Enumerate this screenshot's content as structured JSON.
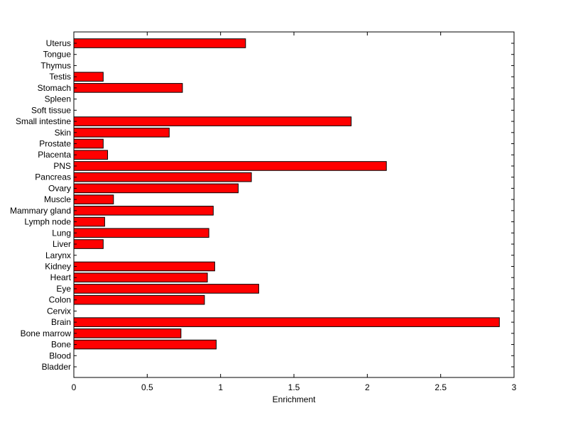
{
  "chart_data": {
    "type": "bar",
    "orientation": "horizontal",
    "title": "",
    "xlabel": "Enrichment",
    "ylabel": "",
    "xlim": [
      0,
      3
    ],
    "xticks": [
      "0",
      "0.5",
      "1",
      "1.5",
      "2",
      "2.5",
      "3"
    ],
    "categories": [
      "Bladder",
      "Blood",
      "Bone",
      "Bone marrow",
      "Brain",
      "Cervix",
      "Colon",
      "Eye",
      "Heart",
      "Kidney",
      "Larynx",
      "Liver",
      "Lung",
      "Lymph node",
      "Mammary gland",
      "Muscle",
      "Ovary",
      "Pancreas",
      "PNS",
      "Placenta",
      "Prostate",
      "Skin",
      "Small intestine",
      "Soft tissue",
      "Spleen",
      "Stomach",
      "Testis",
      "Thymus",
      "Tongue",
      "Uterus"
    ],
    "values": [
      0,
      0,
      0.97,
      0.73,
      2.9,
      0,
      0.89,
      1.26,
      0.91,
      0.96,
      0,
      0.2,
      0.92,
      0.21,
      0.95,
      0.27,
      1.12,
      1.21,
      2.13,
      0.23,
      0.2,
      0.65,
      1.89,
      0,
      0,
      0.74,
      0.2,
      0,
      0,
      1.17
    ],
    "grid": false,
    "colors": {
      "bar_fill": "#ff0000",
      "bar_edge": "#000000",
      "axes": "#000000",
      "background": "#ffffff"
    }
  }
}
